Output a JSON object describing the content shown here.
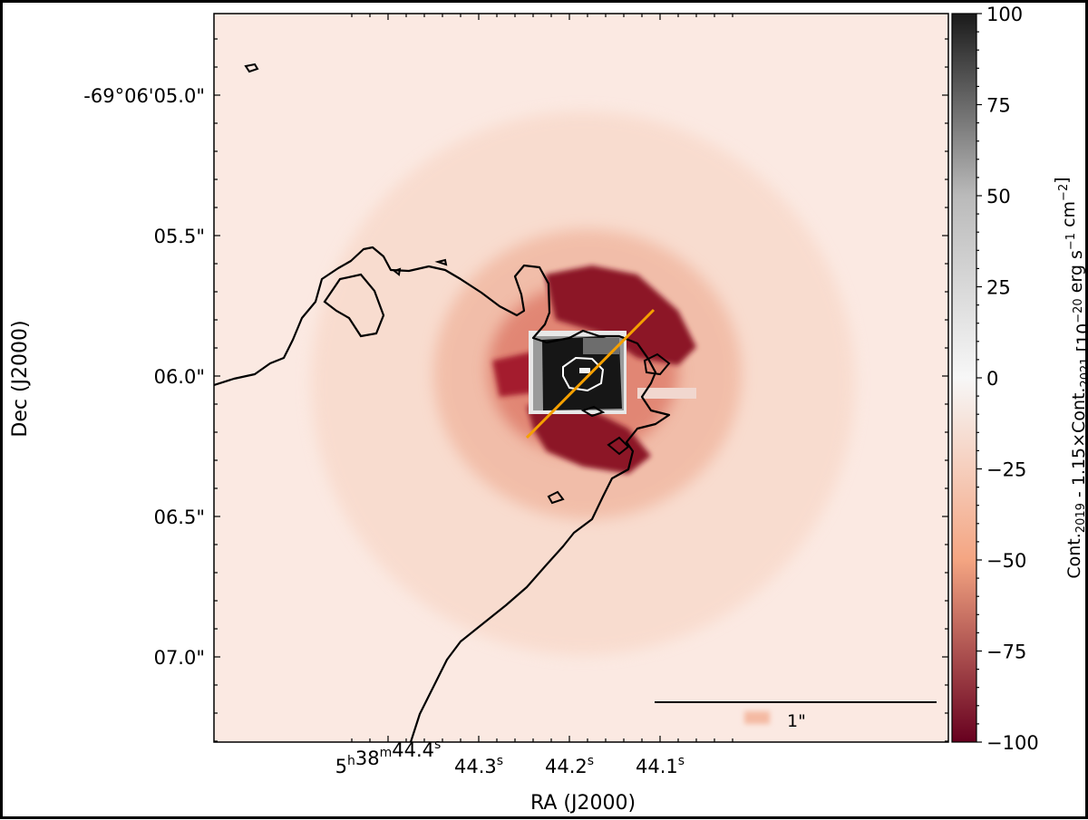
{
  "chart_data": {
    "type": "heatmap",
    "xlabel": "RA (J2000)",
    "ylabel": "Dec (J2000)",
    "x_ticks": [
      {
        "ra_s": 44.4,
        "main": "5",
        "sup1": "h",
        "mid": "38",
        "sup2": "m",
        "rest": "44.4",
        "sup3": "s"
      },
      {
        "ra_s": 44.3,
        "main": "",
        "sup1": "",
        "mid": "",
        "sup2": "",
        "rest": "44.3",
        "sup3": "s"
      },
      {
        "ra_s": 44.2,
        "main": "",
        "sup1": "",
        "mid": "",
        "sup2": "",
        "rest": "44.2",
        "sup3": "s"
      },
      {
        "ra_s": 44.1,
        "main": "",
        "sup1": "",
        "mid": "",
        "sup2": "",
        "rest": "44.1",
        "sup3": "s"
      }
    ],
    "y_ticks": [
      {
        "dec_arcsec": 5.0,
        "label": "-69°06'05.0\""
      },
      {
        "dec_arcsec": 5.5,
        "label": "05.5\""
      },
      {
        "dec_arcsec": 6.0,
        "label": "06.0\""
      },
      {
        "dec_arcsec": 6.5,
        "label": "06.5\""
      },
      {
        "dec_arcsec": 7.0,
        "label": "07.0\""
      }
    ],
    "colorbar": {
      "min": -100,
      "max": 100,
      "ticks": [
        100,
        75,
        50,
        25,
        0,
        -25,
        -50,
        -75,
        -100
      ],
      "tick_labels": [
        "100",
        "75",
        "50",
        "25",
        "0",
        "−25",
        "−50",
        "−75",
        "−100"
      ],
      "label_parts": [
        "Cont.",
        "2019",
        " - 1.15×Cont.",
        "2021",
        "  [10",
        "−20",
        " erg s",
        "−1",
        " cm",
        "−2",
        "]"
      ],
      "colors": {
        "low": "#67001f",
        "mid_low": "#f4a582",
        "zero": "#f7f7f7",
        "mid_high": "#bababa",
        "high": "#1a1a1a"
      }
    },
    "scale_bar": {
      "length_arcsec": 1,
      "label": "1\""
    },
    "colors": {
      "contour": "#000000",
      "inner_contour": "#ffffff",
      "slit_line": "#f5a000"
    }
  }
}
